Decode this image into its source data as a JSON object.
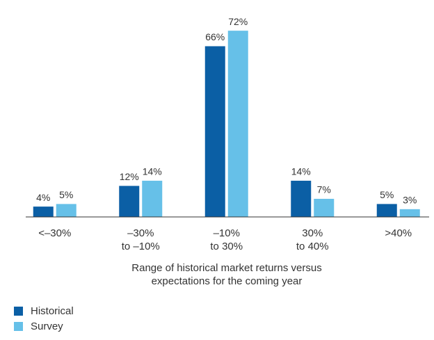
{
  "chart_data": {
    "type": "bar",
    "categories": [
      [
        "<–30%"
      ],
      [
        "–30%",
        "to –10%"
      ],
      [
        "–10%",
        "to 30%"
      ],
      [
        "30%",
        "to 40%"
      ],
      [
        ">40%"
      ]
    ],
    "series": [
      {
        "name": "Historical",
        "color": "#0b5fa5",
        "values": [
          4,
          12,
          66,
          14,
          5
        ],
        "value_labels": [
          "4%",
          "12%",
          "66%",
          "14%",
          "5%"
        ]
      },
      {
        "name": "Survey",
        "color": "#66c0e8",
        "values": [
          5,
          14,
          72,
          7,
          3
        ],
        "value_labels": [
          "5%",
          "14%",
          "72%",
          "7%",
          "3%"
        ]
      }
    ],
    "xlabel": [
      "Range of historical market returns versus",
      "expectations for the coming year"
    ]
  }
}
